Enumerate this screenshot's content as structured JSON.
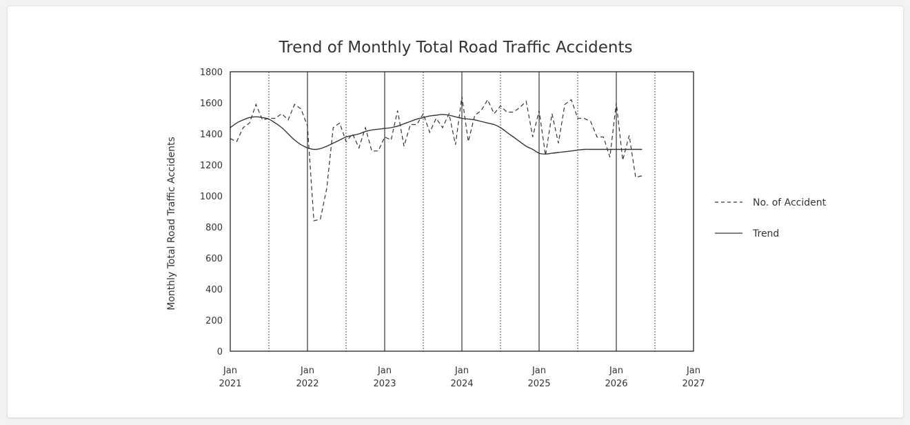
{
  "chart_data": {
    "type": "line",
    "title": "Trend of Monthly Total Road Traffic Accidents",
    "xlabel": "",
    "ylabel": "Monthly Total Road Traffic Accidents",
    "ylim": [
      0,
      1800
    ],
    "yticks": [
      "0",
      "200",
      "400",
      "600",
      "800",
      "1000",
      "1200",
      "1400",
      "1600",
      "1800"
    ],
    "xlim": [
      "2021-01",
      "2027-01"
    ],
    "xticks": [
      {
        "month": "Jan",
        "year": "2021"
      },
      {
        "month": "Jan",
        "year": "2022"
      },
      {
        "month": "Jan",
        "year": "2023"
      },
      {
        "month": "Jan",
        "year": "2024"
      },
      {
        "month": "Jan",
        "year": "2025"
      },
      {
        "month": "Jan",
        "year": "2026"
      },
      {
        "month": "Jan",
        "year": "2027"
      }
    ],
    "grid": "vertical lines: solid at each January, dotted at each July",
    "legend_position": "right",
    "x": [
      "2021-01",
      "2021-02",
      "2021-03",
      "2021-04",
      "2021-05",
      "2021-06",
      "2021-07",
      "2021-08",
      "2021-09",
      "2021-10",
      "2021-11",
      "2021-12",
      "2022-01",
      "2022-02",
      "2022-03",
      "2022-04",
      "2022-05",
      "2022-06",
      "2022-07",
      "2022-08",
      "2022-09",
      "2022-10",
      "2022-11",
      "2022-12",
      "2023-01",
      "2023-02",
      "2023-03",
      "2023-04",
      "2023-05",
      "2023-06",
      "2023-07",
      "2023-08",
      "2023-09",
      "2023-10",
      "2023-11",
      "2023-12",
      "2024-01",
      "2024-02",
      "2024-03",
      "2024-04",
      "2024-05",
      "2024-06",
      "2024-07",
      "2024-08",
      "2024-09",
      "2024-10",
      "2024-11",
      "2024-12",
      "2025-01",
      "2025-02",
      "2025-03",
      "2025-04",
      "2025-05",
      "2025-06",
      "2025-07",
      "2025-08",
      "2025-09",
      "2025-10",
      "2025-11",
      "2025-12",
      "2026-01",
      "2026-02",
      "2026-03",
      "2026-04",
      "2026-05"
    ],
    "series": [
      {
        "name": "No. of Accident",
        "style": "dashed",
        "color": "#333333",
        "values": [
          1370,
          1350,
          1440,
          1470,
          1590,
          1490,
          1500,
          1500,
          1530,
          1490,
          1590,
          1560,
          1450,
          840,
          850,
          1050,
          1440,
          1470,
          1350,
          1400,
          1310,
          1440,
          1290,
          1290,
          1380,
          1360,
          1550,
          1320,
          1460,
          1460,
          1530,
          1410,
          1500,
          1440,
          1530,
          1330,
          1640,
          1350,
          1520,
          1550,
          1620,
          1530,
          1580,
          1540,
          1540,
          1570,
          1610,
          1380,
          1550,
          1260,
          1530,
          1340,
          1590,
          1620,
          1500,
          1500,
          1480,
          1380,
          1380,
          1250,
          1600,
          1230,
          1390,
          1120,
          1130
        ]
      },
      {
        "name": "Trend",
        "style": "solid",
        "color": "#333333",
        "values": [
          1440,
          1470,
          1490,
          1505,
          1510,
          1505,
          1495,
          1470,
          1440,
          1400,
          1360,
          1330,
          1310,
          1300,
          1305,
          1320,
          1340,
          1360,
          1380,
          1390,
          1400,
          1415,
          1425,
          1430,
          1435,
          1440,
          1450,
          1465,
          1480,
          1495,
          1505,
          1515,
          1520,
          1525,
          1520,
          1510,
          1500,
          1495,
          1490,
          1480,
          1470,
          1460,
          1440,
          1410,
          1380,
          1350,
          1320,
          1300,
          1275,
          1270,
          1275,
          1280,
          1285,
          1290,
          1295,
          1300,
          1300,
          1300,
          1300,
          1300,
          1300,
          1300,
          1300,
          1300,
          1300
        ]
      }
    ]
  }
}
